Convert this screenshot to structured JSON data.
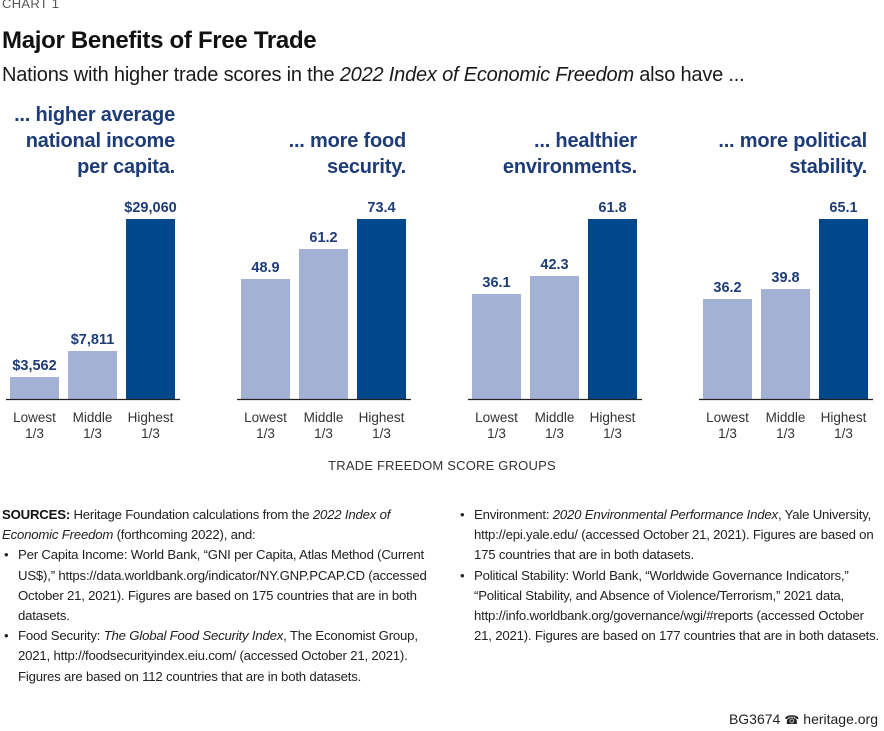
{
  "header": {
    "chart_label": "CHART 1",
    "title": "Major Benefits of Free Trade",
    "subtitle_before": "Nations with higher trade scores in the ",
    "subtitle_italic": "2022 Index of Economic Freedom",
    "subtitle_after": " also have ..."
  },
  "panels": [
    {
      "heading_lines": [
        "... higher average",
        "national income",
        "per capita."
      ]
    },
    {
      "heading_lines": [
        "... more food",
        "security."
      ]
    },
    {
      "heading_lines": [
        "... healthier",
        "environments."
      ]
    },
    {
      "heading_lines": [
        "... more political",
        "stability."
      ]
    }
  ],
  "colors": {
    "light_bar": "#a3b2d4",
    "dark_bar": "#00478b",
    "heading": "#1e3c78",
    "axis": "#222222"
  },
  "chart_data": [
    {
      "type": "bar",
      "title": "... higher average national income per capita.",
      "categories": [
        "Lowest 1/3",
        "Middle 1/3",
        "Highest 1/3"
      ],
      "values": [
        3562,
        7811,
        29060
      ],
      "value_labels": [
        "$3,562",
        "$7,811",
        "$29,060"
      ],
      "xlabel": "TRADE FREEDOM SCORE GROUPS",
      "ylabel": "",
      "ylim": [
        0,
        29060
      ]
    },
    {
      "type": "bar",
      "title": "... more food security.",
      "categories": [
        "Lowest 1/3",
        "Middle 1/3",
        "Highest 1/3"
      ],
      "values": [
        48.9,
        61.2,
        73.4
      ],
      "value_labels": [
        "48.9",
        "61.2",
        "73.4"
      ],
      "xlabel": "TRADE FREEDOM SCORE GROUPS",
      "ylabel": "",
      "ylim": [
        0,
        73.4
      ]
    },
    {
      "type": "bar",
      "title": "... healthier environments.",
      "categories": [
        "Lowest 1/3",
        "Middle 1/3",
        "Highest 1/3"
      ],
      "values": [
        36.1,
        42.3,
        61.8
      ],
      "value_labels": [
        "36.1",
        "42.3",
        "61.8"
      ],
      "xlabel": "TRADE FREEDOM SCORE GROUPS",
      "ylabel": "",
      "ylim": [
        0,
        61.8
      ]
    },
    {
      "type": "bar",
      "title": "... more political stability.",
      "categories": [
        "Lowest 1/3",
        "Middle 1/3",
        "Highest 1/3"
      ],
      "values": [
        36.2,
        39.8,
        65.1
      ],
      "value_labels": [
        "36.2",
        "39.8",
        "65.1"
      ],
      "xlabel": "TRADE FREEDOM SCORE GROUPS",
      "ylabel": "",
      "ylim": [
        0,
        65.1
      ]
    }
  ],
  "category_lines": [
    [
      "Lowest",
      "1/3"
    ],
    [
      "Middle",
      "1/3"
    ],
    [
      "Highest",
      "1/3"
    ]
  ],
  "x_axis_title": "TRADE FREEDOM SCORE GROUPS",
  "sources": {
    "label": "SOURCES:",
    "intro_before": " Heritage Foundation calculations from the ",
    "intro_italic": "2022 Index of Economic Freedom",
    "intro_after": " (forthcoming 2022), and:",
    "items": [
      {
        "before": "Per Capita Income: World Bank, “GNI per Capita, Atlas Method (Current US$),” https://data.worldbank.org/indicator/NY.GNP.PCAP.CD (accessed October 21, 2021). Figures are based on 175 countries that are in both datasets.",
        "italic": "",
        "after": ""
      },
      {
        "before": "Food Security: ",
        "italic": "The Global Food Security Index",
        "after": ", The Economist Group, 2021, http://foodsecurityindex.eiu.com/ (accessed October 21, 2021). Figures are based on 112 countries that are in both datasets."
      },
      {
        "before": "Environment: ",
        "italic": "2020 Environmental Performance Index",
        "after": ", Yale University, http://epi.yale.edu/ (accessed October 21, 2021). Figures are based on 175 countries that are in both datasets."
      },
      {
        "before": "Political Stability: World Bank, “Worldwide Governance Indicators,” “Political Stability, and Absence of Violence/Terrorism,” 2021 data, http://info.worldbank.org/governance/wgi/#reports (accessed October 21, 2021). Figures are based on 177 countries that are in both datasets.",
        "italic": "",
        "after": ""
      }
    ]
  },
  "footer": {
    "report_id": "BG3674",
    "icon": "liberty-bell-icon",
    "site": "heritage.org"
  }
}
